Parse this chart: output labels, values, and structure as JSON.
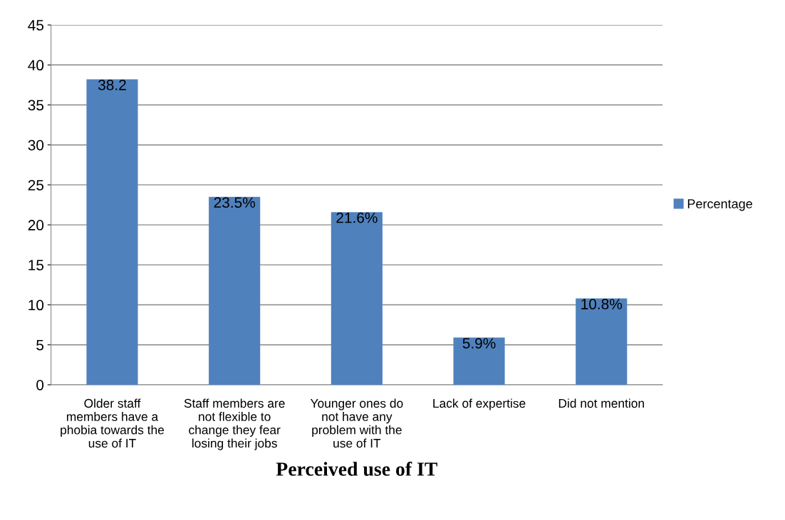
{
  "chart_data": {
    "type": "bar",
    "xlabel": "Perceived use of IT",
    "categories": [
      "Older staff\nmembers have a\nphobia towards the\nuse of IT",
      "Staff members are\nnot flexible to\nchange they fear\nlosing their jobs",
      "Younger ones do\nnot have any\nproblem with the\nuse of IT",
      "Lack of expertise",
      "Did not mention"
    ],
    "series": [
      {
        "name": "Percentage",
        "color": "#4f81bd",
        "values": [
          38.2,
          23.5,
          21.6,
          5.9,
          10.8
        ],
        "value_labels": [
          "38.2",
          "23.5%",
          "21.6%",
          "5.9%",
          "10.8%"
        ]
      }
    ],
    "ylim": [
      0,
      45
    ],
    "yticks": [
      0,
      5,
      10,
      15,
      20,
      25,
      30,
      35,
      40,
      45
    ],
    "grid": "y",
    "legend": "right"
  }
}
